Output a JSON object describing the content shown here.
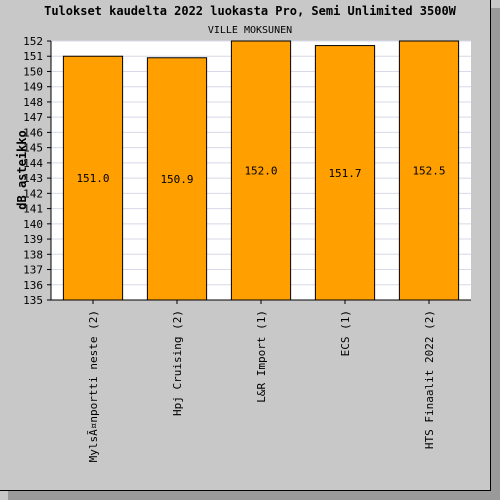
{
  "chart_data": {
    "type": "bar",
    "title": "Tulokset kaudelta 2022 luokasta Pro, Semi Unlimited 3500W",
    "subtitle": "VILLE MOKSUNEN",
    "ylabel": "dB asteikko",
    "xlabel": "",
    "ylim": [
      135,
      152
    ],
    "yticks": [
      135,
      136,
      137,
      138,
      139,
      140,
      141,
      142,
      143,
      144,
      145,
      146,
      147,
      148,
      149,
      150,
      151,
      152
    ],
    "grid": true,
    "bar_color": "#ffa000",
    "categories": [
      "MylsÃ¤nportti neste (2)",
      "Hpj Cruising (2)",
      "L&R Import (1)",
      "ECS (1)",
      "HTS Finaalit 2022 (2)"
    ],
    "values": [
      151.0,
      150.9,
      152.0,
      151.7,
      152.5
    ],
    "value_labels": [
      "151.0",
      "150.9",
      "152.0",
      "151.7",
      "152.5"
    ]
  }
}
